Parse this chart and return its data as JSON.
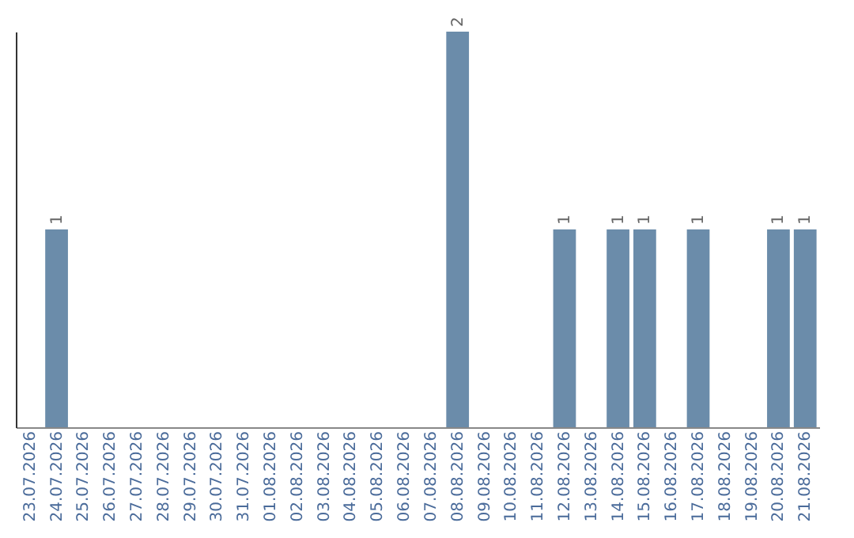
{
  "chart_data": {
    "type": "bar",
    "categories": [
      "23.07.2026",
      "24.07.2026",
      "25.07.2026",
      "26.07.2026",
      "27.07.2026",
      "28.07.2026",
      "29.07.2026",
      "30.07.2026",
      "31.07.2026",
      "01.08.2026",
      "02.08.2026",
      "03.08.2026",
      "04.08.2026",
      "05.08.2026",
      "06.08.2026",
      "07.08.2026",
      "08.08.2026",
      "09.08.2026",
      "10.08.2026",
      "11.08.2026",
      "12.08.2026",
      "13.08.2026",
      "14.08.2026",
      "15.08.2026",
      "16.08.2026",
      "17.08.2026",
      "18.08.2026",
      "19.08.2026",
      "20.08.2026",
      "21.08.2026"
    ],
    "values": [
      0,
      1,
      0,
      0,
      0,
      0,
      0,
      0,
      0,
      0,
      0,
      0,
      0,
      0,
      0,
      0,
      2,
      0,
      0,
      0,
      1,
      0,
      1,
      1,
      0,
      1,
      0,
      0,
      1,
      1
    ],
    "value_labels": [
      null,
      "1",
      null,
      null,
      null,
      null,
      null,
      null,
      null,
      null,
      null,
      null,
      null,
      null,
      null,
      null,
      "2",
      null,
      null,
      null,
      "1",
      null,
      "1",
      "1",
      null,
      "1",
      null,
      null,
      "1",
      "1"
    ],
    "color": "#6b8caa",
    "tick_labels": "x",
    "grid": false
  }
}
